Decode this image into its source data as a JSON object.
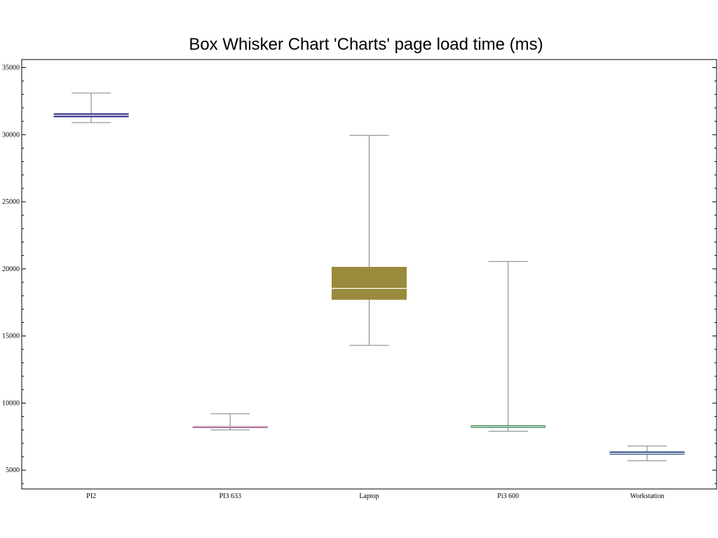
{
  "chart_data": {
    "type": "boxplot",
    "title": "Box Whisker Chart 'Charts' page load time (ms)",
    "xlabel": "",
    "ylabel": "",
    "ylim": [
      3600,
      35600
    ],
    "yticks": [
      5000,
      10000,
      15000,
      20000,
      25000,
      30000,
      35000
    ],
    "ytick_labels": [
      "5000",
      "10000",
      "15000",
      "20000",
      "25000",
      "30000",
      "35000"
    ],
    "grid": false,
    "categories": [
      "PI2",
      "PI3 633",
      "Laptop",
      "Pi3 600",
      "Workstation"
    ],
    "boxes": [
      {
        "category": "PI2",
        "min": 30900,
        "q1": 31300,
        "median": 31450,
        "q3": 31600,
        "max": 33100,
        "color": "#3a3a8c"
      },
      {
        "category": "PI3 633",
        "min": 8000,
        "q1": 8150,
        "median": 8250,
        "q3": 8300,
        "max": 9200,
        "color": "#8c3a6e"
      },
      {
        "category": "Laptop",
        "min": 14300,
        "q1": 17700,
        "median": 18550,
        "q3": 20150,
        "max": 29950,
        "color": "#9a8a3c"
      },
      {
        "category": "Pi3 600",
        "min": 7900,
        "q1": 8150,
        "median": 8250,
        "q3": 8350,
        "max": 20550,
        "color": "#3a8c54"
      },
      {
        "category": "Workstation",
        "min": 5700,
        "q1": 6150,
        "median": 6250,
        "q3": 6400,
        "max": 6800,
        "color": "#3a5a8c"
      }
    ]
  }
}
